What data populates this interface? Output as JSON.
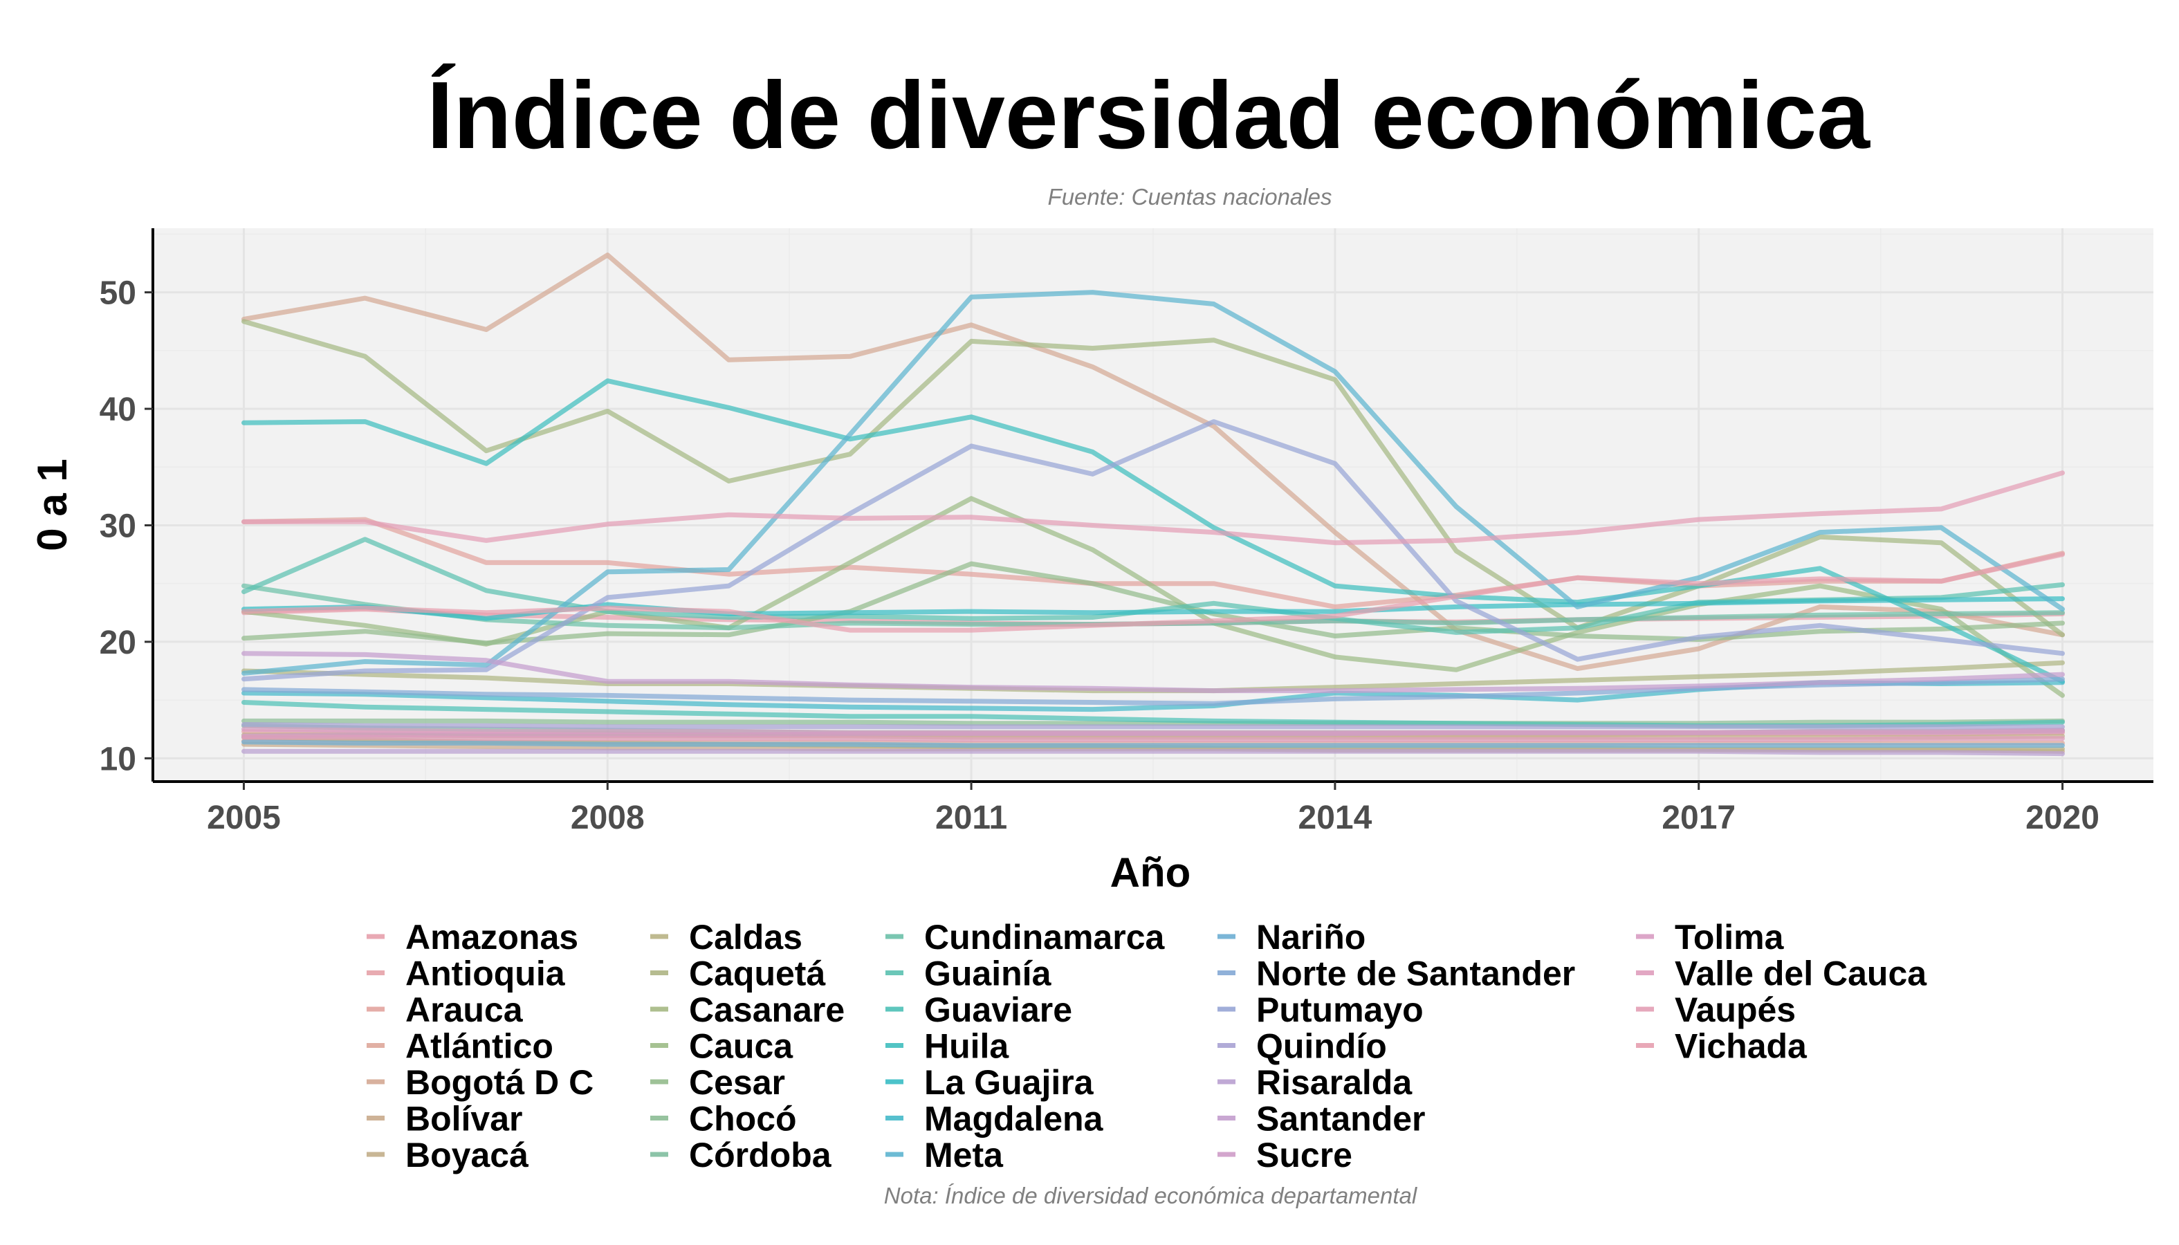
{
  "chart_data": {
    "type": "line",
    "title": "Índice de diversidad económica",
    "subtitle": "Fuente: Cuentas nacionales",
    "caption": "Nota: Índice de diversidad económica departamental",
    "xlabel": "Año",
    "ylabel": "0 a 1",
    "xlim": [
      2004.25,
      2020.75
    ],
    "ylim": [
      8,
      55.5
    ],
    "x_ticks": [
      2005,
      2008,
      2011,
      2014,
      2017,
      2020
    ],
    "y_ticks": [
      10,
      20,
      30,
      40,
      50
    ],
    "grid": true,
    "legend_position": "bottom",
    "x": [
      2005,
      2006,
      2007,
      2008,
      2009,
      2010,
      2011,
      2012,
      2013,
      2014,
      2015,
      2016,
      2017,
      2018,
      2019,
      2020
    ],
    "series": [
      {
        "name": "Amazonas",
        "color": "#E7A0AC",
        "values": [
          22.5,
          22.8,
          22.3,
          22.1,
          21.9,
          21.8,
          21.6,
          21.5,
          21.6,
          21.8,
          21.7,
          21.9,
          22.0,
          22.1,
          22.2,
          22.4
        ]
      },
      {
        "name": "Antioquia",
        "color": "#E6A2A8",
        "values": [
          12.3,
          12.2,
          12.1,
          12.1,
          12.0,
          12.0,
          12.0,
          12.0,
          12.0,
          12.0,
          12.0,
          12.0,
          12.1,
          12.1,
          12.1,
          12.2
        ]
      },
      {
        "name": "Arauca",
        "color": "#E2A49E",
        "values": [
          30.3,
          30.5,
          26.8,
          26.8,
          25.8,
          26.4,
          25.8,
          25.0,
          25.0,
          23.0,
          24.0,
          25.5,
          24.8,
          25.2,
          25.2,
          27.6
        ]
      },
      {
        "name": "Atlántico",
        "color": "#DEA79A",
        "values": [
          11.5,
          11.5,
          11.4,
          11.4,
          11.4,
          11.4,
          11.3,
          11.3,
          11.3,
          11.3,
          11.3,
          11.3,
          11.3,
          11.3,
          11.3,
          11.3
        ]
      },
      {
        "name": "Bogotá D C",
        "color": "#D4A994",
        "values": [
          47.7,
          49.5,
          46.8,
          53.2,
          44.2,
          44.5,
          47.2,
          43.6,
          38.5,
          29.4,
          21.0,
          17.7,
          19.4,
          23.0,
          22.6,
          20.6
        ]
      },
      {
        "name": "Bolívar",
        "color": "#C9AB8C",
        "values": [
          11.2,
          11.1,
          11.0,
          10.9,
          10.9,
          10.8,
          10.8,
          10.8,
          10.8,
          10.7,
          10.7,
          10.7,
          10.7,
          10.7,
          10.7,
          10.6
        ]
      },
      {
        "name": "Boyacá",
        "color": "#C2AE89",
        "values": [
          12.0,
          12.0,
          11.9,
          11.9,
          11.9,
          11.9,
          11.8,
          11.8,
          11.8,
          11.8,
          11.8,
          11.8,
          11.8,
          11.8,
          11.8,
          11.9
        ]
      },
      {
        "name": "Caldas",
        "color": "#B8B284",
        "values": [
          11.8,
          11.6,
          11.4,
          11.3,
          11.2,
          11.1,
          11.0,
          11.0,
          10.9,
          10.9,
          10.9,
          10.9,
          10.8,
          10.8,
          10.8,
          10.8
        ]
      },
      {
        "name": "Caquetá",
        "color": "#AEB584",
        "values": [
          17.5,
          17.2,
          16.9,
          16.4,
          16.4,
          16.2,
          16.0,
          15.8,
          15.8,
          16.1,
          16.4,
          16.7,
          17.0,
          17.3,
          17.7,
          18.2
        ]
      },
      {
        "name": "Casanare",
        "color": "#A5B883",
        "values": [
          47.5,
          44.5,
          36.4,
          39.8,
          33.8,
          36.1,
          45.8,
          45.2,
          45.9,
          42.5,
          27.8,
          21.2,
          24.8,
          29.0,
          28.5,
          20.6
        ]
      },
      {
        "name": "Cauca",
        "color": "#9CBB86",
        "values": [
          22.6,
          21.4,
          19.8,
          22.6,
          21.2,
          26.8,
          32.3,
          27.9,
          21.6,
          18.7,
          17.6,
          20.8,
          23.2,
          24.8,
          22.8,
          15.4
        ]
      },
      {
        "name": "Cesar",
        "color": "#93BB8C",
        "values": [
          20.3,
          20.9,
          19.9,
          20.7,
          20.6,
          22.6,
          26.7,
          25.0,
          22.4,
          20.5,
          21.2,
          20.5,
          20.2,
          20.9,
          21.1,
          21.6
        ]
      },
      {
        "name": "Chocó",
        "color": "#8CBC95",
        "values": [
          13.2,
          13.2,
          13.2,
          13.1,
          13.1,
          13.1,
          13.0,
          13.0,
          13.0,
          13.0,
          13.0,
          13.0,
          13.0,
          13.1,
          13.1,
          13.2
        ]
      },
      {
        "name": "Córdoba",
        "color": "#80BE9E",
        "values": [
          12.8,
          12.6,
          12.5,
          12.4,
          12.3,
          12.2,
          12.2,
          12.2,
          12.2,
          12.2,
          12.2,
          12.2,
          12.2,
          12.3,
          12.3,
          12.4
        ]
      },
      {
        "name": "Cundinamarca",
        "color": "#6CC0A8",
        "values": [
          24.8,
          23.2,
          21.9,
          21.4,
          21.2,
          21.6,
          21.5,
          21.5,
          21.6,
          21.8,
          21.6,
          21.9,
          22.1,
          22.3,
          22.4,
          22.5
        ]
      },
      {
        "name": "Guainía",
        "color": "#5BC1B0",
        "values": [
          24.3,
          28.8,
          24.4,
          22.6,
          22.1,
          22.2,
          22.0,
          22.1,
          23.3,
          22.0,
          20.8,
          21.2,
          23.4,
          23.6,
          23.8,
          24.9
        ]
      },
      {
        "name": "Guaviare",
        "color": "#4DC0B6",
        "values": [
          14.8,
          14.4,
          14.2,
          14.0,
          13.8,
          13.6,
          13.6,
          13.4,
          13.2,
          13.1,
          13.0,
          12.9,
          12.8,
          12.8,
          12.9,
          13.1
        ]
      },
      {
        "name": "Huila",
        "color": "#3FBEBE",
        "values": [
          38.8,
          38.9,
          35.3,
          42.4,
          40.1,
          37.4,
          39.3,
          36.3,
          29.8,
          24.8,
          23.9,
          23.4,
          24.8,
          26.3,
          21.6,
          16.6
        ]
      },
      {
        "name": "La Guajira",
        "color": "#38BCC4",
        "values": [
          22.8,
          23.0,
          22.0,
          23.2,
          22.4,
          22.5,
          22.6,
          22.5,
          22.6,
          22.6,
          23.0,
          23.2,
          23.3,
          23.5,
          23.6,
          23.7
        ]
      },
      {
        "name": "Magdalena",
        "color": "#45B9C9",
        "values": [
          15.6,
          15.5,
          15.2,
          14.9,
          14.6,
          14.4,
          14.3,
          14.2,
          14.5,
          15.6,
          15.4,
          15.0,
          15.9,
          16.5,
          16.4,
          16.5
        ]
      },
      {
        "name": "Meta",
        "color": "#5DB4CF",
        "values": [
          17.3,
          18.3,
          18.0,
          26.0,
          26.2,
          37.8,
          49.6,
          50.0,
          49.0,
          43.2,
          31.6,
          23.0,
          25.5,
          29.4,
          29.8,
          22.8
        ]
      },
      {
        "name": "Nariño",
        "color": "#6DAED3",
        "values": [
          11.4,
          11.3,
          11.3,
          11.2,
          11.2,
          11.2,
          11.1,
          11.1,
          11.1,
          11.1,
          11.1,
          11.1,
          11.1,
          11.1,
          11.1,
          11.1
        ]
      },
      {
        "name": "Norte de Santander",
        "color": "#84A9D5",
        "values": [
          15.9,
          15.7,
          15.5,
          15.4,
          15.2,
          15.0,
          14.9,
          14.8,
          14.7,
          15.1,
          15.3,
          15.6,
          16.0,
          16.3,
          16.5,
          16.8
        ]
      },
      {
        "name": "Putumayo",
        "color": "#97A5D5",
        "values": [
          16.8,
          17.5,
          17.6,
          23.8,
          24.8,
          31.0,
          36.8,
          34.4,
          38.9,
          35.3,
          23.5,
          18.5,
          20.4,
          21.4,
          20.2,
          19.0
        ]
      },
      {
        "name": "Quindío",
        "color": "#A8A2D3",
        "values": [
          12.9,
          12.8,
          12.8,
          12.7,
          12.7,
          12.7,
          12.7,
          12.7,
          12.7,
          12.7,
          12.7,
          12.7,
          12.7,
          12.7,
          12.7,
          12.7
        ]
      },
      {
        "name": "Risaralda",
        "color": "#B9A0D0",
        "values": [
          10.6,
          10.6,
          10.6,
          10.6,
          10.6,
          10.6,
          10.6,
          10.6,
          10.6,
          10.6,
          10.6,
          10.6,
          10.6,
          10.5,
          10.5,
          10.4
        ]
      },
      {
        "name": "Santander",
        "color": "#C39DCD",
        "values": [
          19.0,
          18.9,
          18.4,
          16.6,
          16.6,
          16.3,
          16.1,
          16.0,
          15.8,
          15.8,
          15.9,
          16.0,
          16.2,
          16.5,
          16.8,
          17.2
        ]
      },
      {
        "name": "Sucre",
        "color": "#CE9CC8",
        "values": [
          11.9,
          12.0,
          12.0,
          12.0,
          12.0,
          12.1,
          12.1,
          12.1,
          12.1,
          12.1,
          12.2,
          12.2,
          12.2,
          12.3,
          12.3,
          12.4
        ]
      },
      {
        "name": "Tolima",
        "color": "#D89CC2",
        "values": [
          12.5,
          12.4,
          12.3,
          12.3,
          12.3,
          12.2,
          12.2,
          12.2,
          12.2,
          12.2,
          12.2,
          12.2,
          12.2,
          12.2,
          12.2,
          12.3
        ]
      },
      {
        "name": "Valle del Cauca",
        "color": "#DF9DBC",
        "values": [
          11.8,
          11.8,
          11.7,
          11.7,
          11.7,
          11.7,
          11.6,
          11.6,
          11.6,
          11.6,
          11.6,
          11.6,
          11.6,
          11.6,
          11.7,
          11.7
        ]
      },
      {
        "name": "Vaupés",
        "color": "#E39EB5",
        "values": [
          30.3,
          30.3,
          28.7,
          30.1,
          30.9,
          30.6,
          30.7,
          30.0,
          29.4,
          28.5,
          28.7,
          29.4,
          30.5,
          31.0,
          31.4,
          34.5
        ]
      },
      {
        "name": "Vichada",
        "color": "#E69FAF",
        "values": [
          22.6,
          22.9,
          22.5,
          22.9,
          22.6,
          21.0,
          21.0,
          21.4,
          21.8,
          22.2,
          23.9,
          25.5,
          25.0,
          25.4,
          25.2,
          27.5
        ]
      }
    ]
  }
}
